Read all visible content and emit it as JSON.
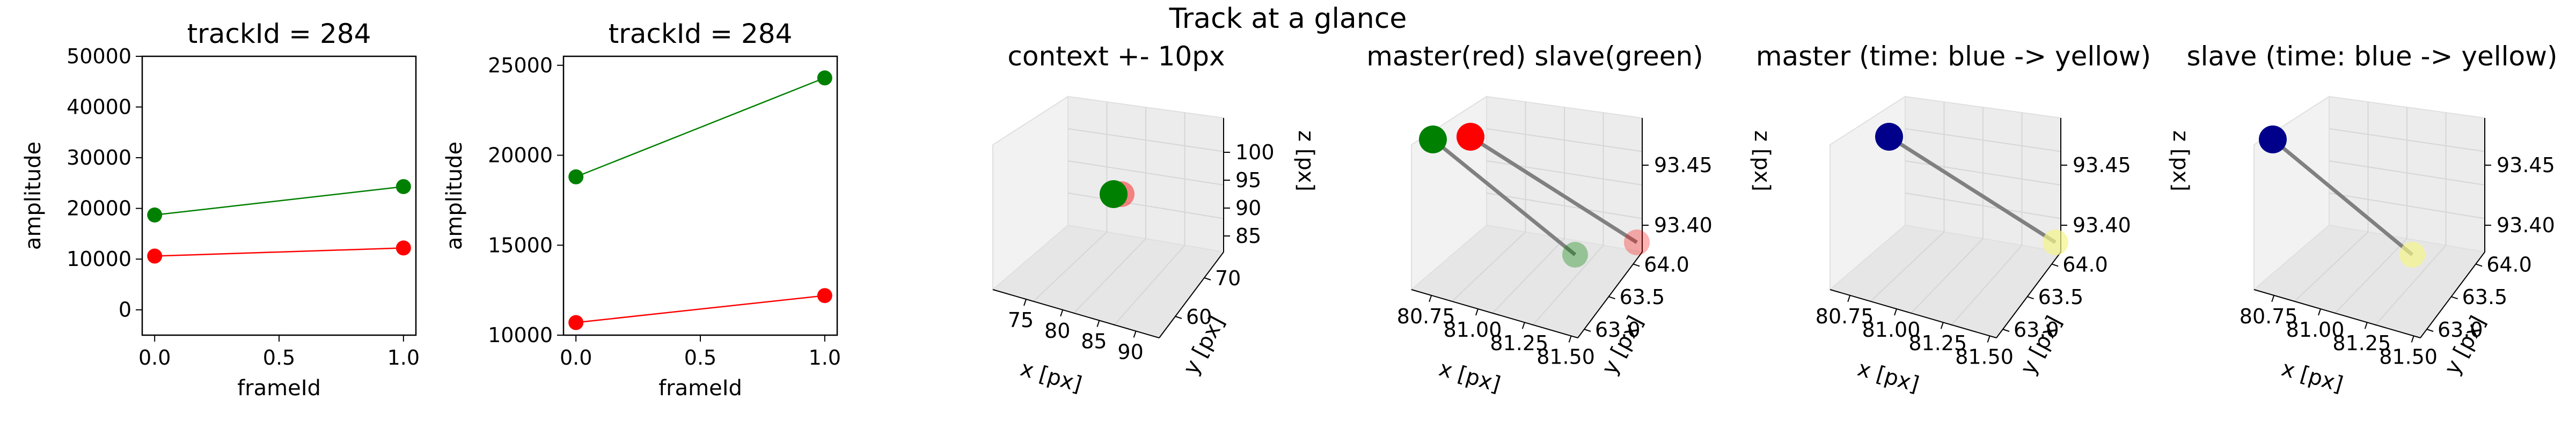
{
  "suptitle": "Track at a glance",
  "chart_data": [
    {
      "type": "line",
      "title": "trackId = 284",
      "xlabel": "frameId",
      "ylabel": "amplitude",
      "xlim": [
        -0.05,
        1.05
      ],
      "ylim": [
        -5000,
        50000
      ],
      "xticks": [
        "0.0",
        "0.5",
        "1.0"
      ],
      "yticks": [
        "0",
        "10000",
        "20000",
        "30000",
        "40000",
        "50000"
      ],
      "x": [
        0,
        1
      ],
      "series": [
        {
          "values": [
            18700,
            24300
          ],
          "color": "#008000"
        },
        {
          "values": [
            10600,
            12200
          ],
          "color": "#ff0000"
        }
      ]
    },
    {
      "type": "line",
      "title": "trackId = 284",
      "xlabel": "frameId",
      "ylabel": "amplitude",
      "xlim": [
        -0.05,
        1.05
      ],
      "ylim": [
        10000,
        25500
      ],
      "xticks": [
        "0.0",
        "0.5",
        "1.0"
      ],
      "yticks": [
        "10000",
        "15000",
        "20000",
        "25000"
      ],
      "x": [
        0,
        1
      ],
      "series": [
        {
          "values": [
            18800,
            24300
          ],
          "color": "#008000"
        },
        {
          "values": [
            10700,
            12200
          ],
          "color": "#ff0000"
        }
      ]
    },
    {
      "type": "scatter",
      "title": "context +- 10px",
      "xlabel": "x [px]",
      "ylabel": "y [px]",
      "zlabel": "z [px]",
      "xticks": [
        "75",
        "80",
        "85",
        "90"
      ],
      "yticks": [
        "60",
        "70"
      ],
      "zticks": [
        "85",
        "90",
        "95",
        "100"
      ],
      "points": [
        {
          "x": 81.4,
          "y": 64.0,
          "z": 93.4,
          "color": "#ff0000",
          "opacity": 0.45
        },
        {
          "x": 80.9,
          "y": 63.4,
          "z": 93.42,
          "color": "#008000",
          "opacity": 1
        }
      ]
    },
    {
      "type": "scatter",
      "title": "master(red) slave(green)",
      "xlabel": "x [px]",
      "ylabel": "y [px]",
      "zlabel": "z [px]",
      "xticks": [
        "80.75",
        "81.00",
        "81.25",
        "81.50"
      ],
      "yticks": [
        "63.0",
        "63.5",
        "64.0"
      ],
      "zticks": [
        "93.40",
        "93.45"
      ],
      "points": [
        {
          "color": "#008000",
          "opacity": 1
        },
        {
          "color": "#ff0000",
          "opacity": 1
        },
        {
          "color": "#008000",
          "opacity": 0.35
        },
        {
          "color": "#ff0000",
          "opacity": 0.3
        }
      ]
    },
    {
      "type": "scatter",
      "title": "master (time: blue -> yellow)",
      "xlabel": "x [px]",
      "ylabel": "y [px]",
      "zlabel": "z [px]",
      "xticks": [
        "80.75",
        "81.00",
        "81.25",
        "81.50"
      ],
      "yticks": [
        "63.0",
        "63.5",
        "64.0"
      ],
      "zticks": [
        "93.40",
        "93.45"
      ],
      "points": [
        {
          "color": "#00008b",
          "opacity": 1
        },
        {
          "color": "#f5f58a",
          "opacity": 0.7
        }
      ]
    },
    {
      "type": "scatter",
      "title": "slave (time: blue -> yellow)",
      "xlabel": "x [px]",
      "ylabel": "y [px]",
      "zlabel": "z [px]",
      "xticks": [
        "80.75",
        "81.00",
        "81.25",
        "81.50"
      ],
      "yticks": [
        "63.0",
        "63.5",
        "64.0"
      ],
      "zticks": [
        "93.40",
        "93.45"
      ],
      "points": [
        {
          "color": "#00008b",
          "opacity": 1
        },
        {
          "color": "#f5f58a",
          "opacity": 0.7
        }
      ]
    }
  ]
}
